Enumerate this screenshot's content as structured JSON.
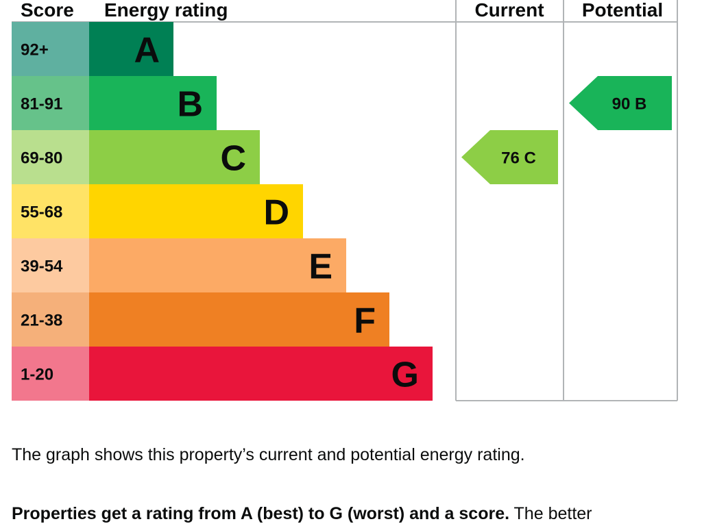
{
  "chart_data": {
    "type": "bar",
    "headers": {
      "score": "Score",
      "rating": "Energy rating",
      "current": "Current",
      "potential": "Potential"
    },
    "bands": [
      {
        "score": "92+",
        "letter": "A",
        "color": "#008054",
        "score_bg": "#5fb0a0"
      },
      {
        "score": "81-91",
        "letter": "B",
        "color": "#19b459",
        "score_bg": "#66c28a"
      },
      {
        "score": "69-80",
        "letter": "C",
        "color": "#8dce46",
        "score_bg": "#b9df8e"
      },
      {
        "score": "55-68",
        "letter": "D",
        "color": "#ffd500",
        "score_bg": "#ffe366"
      },
      {
        "score": "39-54",
        "letter": "E",
        "color": "#fcaa65",
        "score_bg": "#fdcaa0"
      },
      {
        "score": "21-38",
        "letter": "F",
        "color": "#ef8023",
        "score_bg": "#f5b07a"
      },
      {
        "score": "1-20",
        "letter": "G",
        "color": "#e9153b",
        "score_bg": "#f2778d"
      }
    ],
    "current": {
      "value": 76,
      "band": "C",
      "label": "76 C",
      "color": "#8dce46"
    },
    "potential": {
      "value": 90,
      "band": "B",
      "label": "90 B",
      "color": "#19b459"
    }
  },
  "caption": "The graph shows this property’s current and potential energy rating.",
  "lead_bold": "Properties get a rating from A (best) to G (worst) and a score.",
  "lead_rest": " The better"
}
